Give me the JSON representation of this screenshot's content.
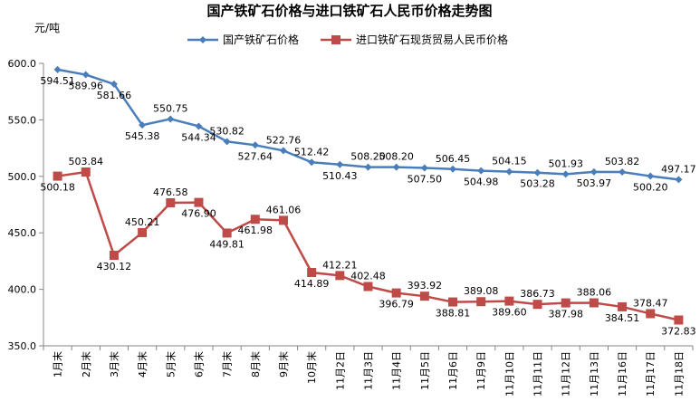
{
  "chart_data": {
    "type": "line",
    "title": "国产铁矿石价格与进口铁矿石人民币价格走势图",
    "ylabel": "元/吨",
    "xlabel": "",
    "ylim": [
      350,
      600
    ],
    "yticks": [
      "350.0",
      "400.0",
      "450.0",
      "500.0",
      "550.0",
      "600.0"
    ],
    "grid": false,
    "legend": "top",
    "categories": [
      "1月末",
      "2月末",
      "3月末",
      "4月末",
      "5月末",
      "6月末",
      "7月末",
      "8月末",
      "9月末",
      "10月末",
      "11月2日",
      "11月3日",
      "11月4日",
      "11月5日",
      "11月6日",
      "11月9日",
      "11月10日",
      "11月11日",
      "11月12日",
      "11月13日",
      "11月16日",
      "11月17日",
      "11月18日"
    ],
    "series": [
      {
        "name": "国产铁矿石价格",
        "color": "#4a7ebb",
        "marker": "diamond",
        "values": [
          594.51,
          589.96,
          581.66,
          545.38,
          550.75,
          544.34,
          530.82,
          527.64,
          522.76,
          512.42,
          510.43,
          508.2,
          508.2,
          507.5,
          506.45,
          504.98,
          504.15,
          503.28,
          501.93,
          503.97,
          503.82,
          500.2,
          497.17
        ],
        "labels": [
          "594.51",
          "589.96",
          "581.66",
          "545.38",
          "550.75",
          "544.34",
          "530.82",
          "527.64",
          "522.76",
          "512.42",
          "510.43",
          "508.20",
          "508.20",
          "507.50",
          "506.45",
          "504.98",
          "504.15",
          "503.28",
          "501.93",
          "503.97",
          "503.82",
          "500.20",
          "497.17"
        ]
      },
      {
        "name": "进口铁矿石现货贸易人民币价格",
        "color": "#be4b48",
        "marker": "square",
        "values": [
          500.18,
          503.84,
          430.12,
          450.21,
          476.58,
          476.9,
          449.81,
          461.98,
          461.06,
          414.89,
          412.21,
          402.48,
          396.79,
          393.92,
          388.81,
          389.08,
          389.6,
          386.73,
          387.98,
          388.06,
          384.51,
          378.47,
          372.83
        ],
        "labels": [
          "500.18",
          "503.84",
          "430.12",
          "450.21",
          "476.58",
          "476.90",
          "449.81",
          "461.98",
          "461.06",
          "414.89",
          "412.21",
          "402.48",
          "396.79",
          "393.92",
          "388.81",
          "389.08",
          "389.60",
          "386.73",
          "387.98",
          "388.06",
          "384.51",
          "378.47",
          "372.83"
        ]
      }
    ]
  }
}
